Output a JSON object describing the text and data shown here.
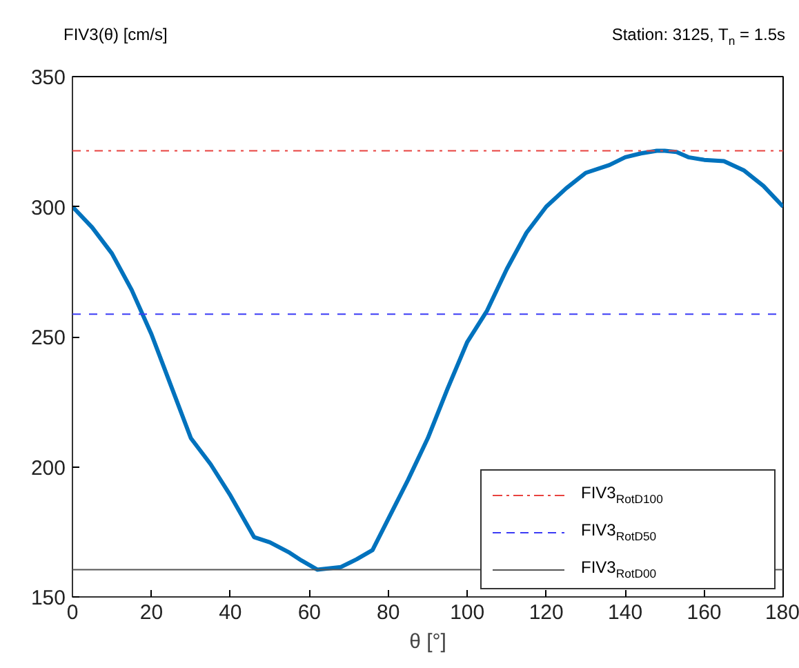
{
  "chart_data": {
    "type": "line",
    "title": "Station: 3125, T$_{n}$ = 1.5s",
    "ylabel": "FIV3(θ) [cm/s]",
    "xlabel": "θ [°]",
    "x": [
      0,
      5,
      10,
      15,
      20,
      25,
      30,
      35,
      40,
      46,
      50,
      55,
      58,
      62,
      68,
      72,
      76,
      80,
      85,
      90,
      95,
      100,
      105,
      110,
      115,
      120,
      125,
      130,
      136,
      140,
      144,
      148,
      150,
      153,
      156,
      160,
      165,
      170,
      175,
      180
    ],
    "series": [
      {
        "color": "#0072bd",
        "values": [
          300,
          292,
          282,
          268,
          251,
          231,
          211,
          201,
          189,
          173,
          171,
          167,
          164,
          160.5,
          161.5,
          164.5,
          168,
          180,
          195,
          211,
          230,
          248,
          260,
          276,
          290,
          300,
          307,
          313,
          316,
          319,
          320.5,
          321.5,
          321.5,
          321,
          319,
          318,
          317.5,
          314,
          308,
          300
        ]
      }
    ],
    "xlim": [
      0,
      180
    ],
    "ylim": [
      150,
      350
    ],
    "xticks": [
      0,
      20,
      40,
      60,
      80,
      100,
      120,
      140,
      160,
      180
    ],
    "yticks": [
      150,
      200,
      250,
      300,
      350
    ],
    "ref_lines": [
      {
        "axis": "y",
        "value": 321.5,
        "label": "FIV3$_{RotD100}$",
        "color": "#e8423f",
        "line_style": "dashdot"
      },
      {
        "axis": "y",
        "value": 258.7,
        "label": "FIV3$_{RotD50}$",
        "color": "#3b3bf5",
        "line_style": "dashed"
      },
      {
        "axis": "y",
        "value": 160.5,
        "label": "FIV3$_{RotD00}$",
        "color": "#555555",
        "line_style": "solid"
      }
    ],
    "legend": "bottom right",
    "grid": false,
    "marker": "none",
    "line_style": "solid"
  }
}
